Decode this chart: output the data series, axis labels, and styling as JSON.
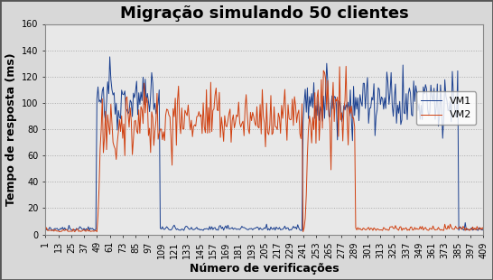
{
  "title": "Migração simulando 50 clientes",
  "xlabel": "Número de verificações",
  "ylabel": "Tempo de resposta (ms)",
  "ylim": [
    0,
    160
  ],
  "xlim": [
    1,
    409
  ],
  "yticks": [
    0,
    20,
    40,
    60,
    80,
    100,
    120,
    140,
    160
  ],
  "xticks": [
    1,
    13,
    25,
    37,
    49,
    61,
    73,
    85,
    97,
    109,
    121,
    133,
    145,
    157,
    169,
    181,
    193,
    205,
    217,
    229,
    241,
    253,
    265,
    277,
    289,
    301,
    313,
    325,
    337,
    349,
    361,
    373,
    385,
    397,
    409
  ],
  "vm1_color": "#1a3f8f",
  "vm2_color": "#d04010",
  "legend_labels": [
    "VM1",
    "VM2"
  ],
  "background_color": "#d8d8d8",
  "plot_bg_color": "#e8e8e8",
  "grid_color": "#aaaaaa",
  "title_fontsize": 13,
  "axis_label_fontsize": 9,
  "tick_fontsize": 7,
  "legend_fontsize": 8,
  "vm1_active_1_start": 49,
  "vm1_active_1_end": 107,
  "vm1_low_start": 108,
  "vm1_low_end": 240,
  "vm1_active_2_start": 241,
  "vm1_active_2_end": 385,
  "vm2_active_1_start": 49,
  "vm2_active_1_end": 107,
  "vm2_active_2_start": 109,
  "vm2_active_2_end": 240,
  "vm2_active_3_start": 241,
  "vm2_active_3_end": 289,
  "vm2_low_start": 290,
  "vm2_low_end": 409
}
